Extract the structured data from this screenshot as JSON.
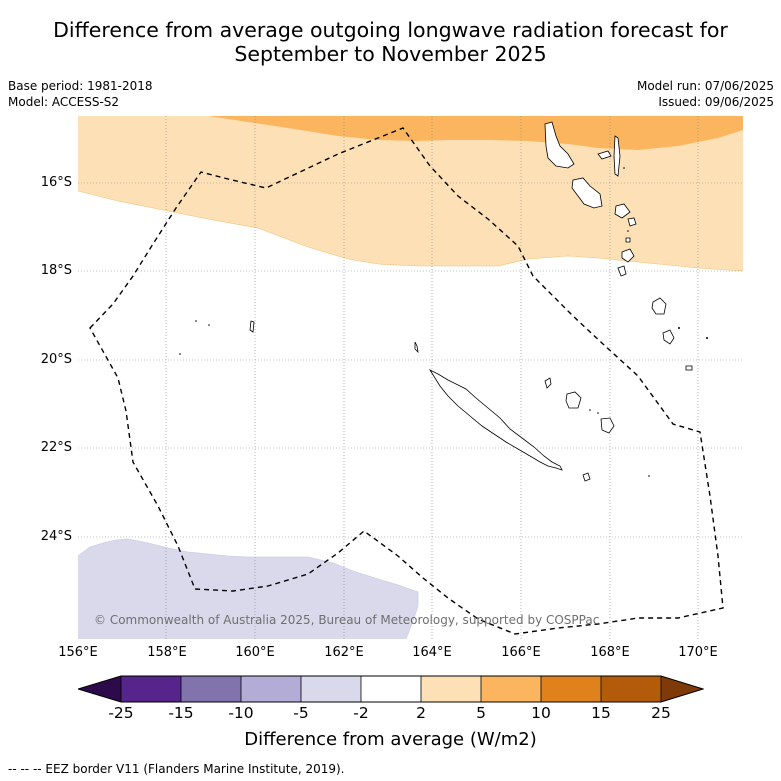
{
  "title_line1": "Difference from average outgoing longwave radiation forecast for",
  "title_line2": "September to November 2025",
  "base_period": "Base period: 1981-2018",
  "model": "Model: ACCESS-S2",
  "model_run": "Model run: 07/06/2025",
  "issued": "Issued: 09/06/2025",
  "lat_ticks": [
    "16°S",
    "18°S",
    "20°S",
    "22°S",
    "24°S"
  ],
  "lon_ticks": [
    "156°E",
    "158°E",
    "160°E",
    "162°E",
    "164°E",
    "166°E",
    "168°E",
    "170°E"
  ],
  "copyright": "© Commonwealth of Australia 2025, Bureau of Meteorology, supported by COSPPac",
  "colorbar": {
    "ticks": [
      "-25",
      "-15",
      "-10",
      "-5",
      "-2",
      "2",
      "5",
      "10",
      "15",
      "25"
    ],
    "label": "Difference from average (W/m2)",
    "colors": [
      "#2d0a4b",
      "#56258b",
      "#8174ad",
      "#b3acd6",
      "#d9d9eb",
      "#ffffff",
      "#fde0b6",
      "#fbb55f",
      "#df821c",
      "#b25c0a",
      "#7e3b07"
    ]
  },
  "footnote": "--  --  -- EEZ border V11 (Flanders Marine Institute, 2019)."
}
